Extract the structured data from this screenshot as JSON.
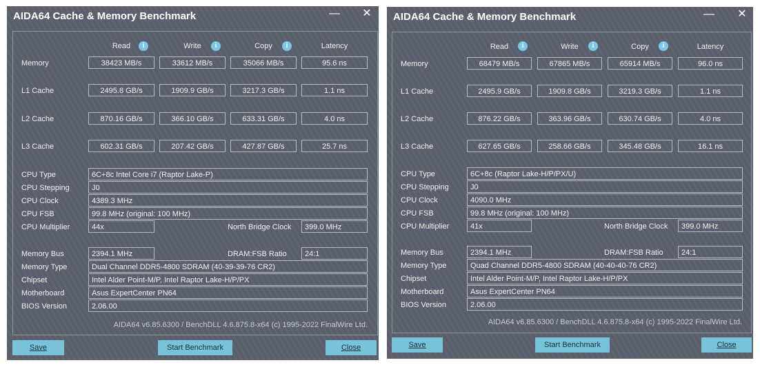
{
  "windows": [
    {
      "title": "AIDA64 Cache & Memory Benchmark",
      "controls": {
        "minimize": "—",
        "close": "✕"
      },
      "headers": {
        "read": "Read",
        "write": "Write",
        "copy": "Copy",
        "latency": "Latency"
      },
      "rows": [
        {
          "label": "Memory",
          "read": "38423 MB/s",
          "write": "33612 MB/s",
          "copy": "35066 MB/s",
          "latency": "95.6 ns"
        },
        {
          "label": "L1 Cache",
          "read": "2495.8 GB/s",
          "write": "1909.9 GB/s",
          "copy": "3217.3 GB/s",
          "latency": "1.1 ns"
        },
        {
          "label": "L2 Cache",
          "read": "870.16 GB/s",
          "write": "366.10 GB/s",
          "copy": "633.31 GB/s",
          "latency": "4.0 ns"
        },
        {
          "label": "L3 Cache",
          "read": "602.31 GB/s",
          "write": "207.42 GB/s",
          "copy": "427.87 GB/s",
          "latency": "25.7 ns"
        }
      ],
      "cpu": {
        "type_label": "CPU Type",
        "type": "6C+8c Intel Core i7  (Raptor Lake-P)",
        "stepping_label": "CPU Stepping",
        "stepping": "J0",
        "clock_label": "CPU Clock",
        "clock": "4389.3 MHz",
        "fsb_label": "CPU FSB",
        "fsb": "99.8 MHz  (original: 100 MHz)",
        "mult_label": "CPU Multiplier",
        "mult": "44x",
        "nb_label": "North Bridge Clock",
        "nb": "399.0 MHz"
      },
      "mem": {
        "bus_label": "Memory Bus",
        "bus": "2394.1 MHz",
        "ratio_label": "DRAM:FSB Ratio",
        "ratio": "24:1",
        "type_label": "Memory Type",
        "type": "Dual Channel DDR5-4800 SDRAM  (40-39-39-76 CR2)",
        "chipset_label": "Chipset",
        "chipset": "Intel Alder Point-M/P, Intel Raptor Lake-H/P/PX",
        "mb_label": "Motherboard",
        "mb": "Asus ExpertCenter PN64",
        "bios_label": "BIOS Version",
        "bios": "2.06.00"
      },
      "footer": "AIDA64 v6.85.6300 / BenchDLL 4.6.875.8-x64  (c) 1995-2022 FinalWire Ltd.",
      "buttons": {
        "save": "Save",
        "start": "Start Benchmark",
        "close": "Close"
      }
    },
    {
      "title": "AIDA64 Cache & Memory Benchmark",
      "controls": {
        "minimize": "—",
        "close": "✕"
      },
      "headers": {
        "read": "Read",
        "write": "Write",
        "copy": "Copy",
        "latency": "Latency"
      },
      "rows": [
        {
          "label": "Memory",
          "read": "68479 MB/s",
          "write": "67865 MB/s",
          "copy": "65914 MB/s",
          "latency": "96.0 ns"
        },
        {
          "label": "L1 Cache",
          "read": "2495.9 GB/s",
          "write": "1909.8 GB/s",
          "copy": "3219.3 GB/s",
          "latency": "1.1 ns"
        },
        {
          "label": "L2 Cache",
          "read": "876.22 GB/s",
          "write": "363.96 GB/s",
          "copy": "630.74 GB/s",
          "latency": "4.0 ns"
        },
        {
          "label": "L3 Cache",
          "read": "627.65 GB/s",
          "write": "258.66 GB/s",
          "copy": "345.48 GB/s",
          "latency": "16.1 ns"
        }
      ],
      "cpu": {
        "type_label": "CPU Type",
        "type": "6C+8c  (Raptor Lake-H/P/PX/U)",
        "stepping_label": "CPU Stepping",
        "stepping": "J0",
        "clock_label": "CPU Clock",
        "clock": "4090.0 MHz",
        "fsb_label": "CPU FSB",
        "fsb": "99.8 MHz  (original: 100 MHz)",
        "mult_label": "CPU Multiplier",
        "mult": "41x",
        "nb_label": "North Bridge Clock",
        "nb": "399.0 MHz"
      },
      "mem": {
        "bus_label": "Memory Bus",
        "bus": "2394.1 MHz",
        "ratio_label": "DRAM:FSB Ratio",
        "ratio": "24:1",
        "type_label": "Memory Type",
        "type": "Quad Channel DDR5-4800 SDRAM  (40-40-40-76 CR2)",
        "chipset_label": "Chipset",
        "chipset": "Intel Alder Point-M/P, Intel Raptor Lake-H/P/PX",
        "mb_label": "Motherboard",
        "mb": "Asus ExpertCenter PN64",
        "bios_label": "BIOS Version",
        "bios": "2.06.00"
      },
      "footer": "AIDA64 v6.85.6300 / BenchDLL 4.6.875.8-x64  (c) 1995-2022 FinalWire Ltd.",
      "buttons": {
        "save": "Save",
        "start": "Start Benchmark",
        "close": "Close"
      }
    }
  ]
}
